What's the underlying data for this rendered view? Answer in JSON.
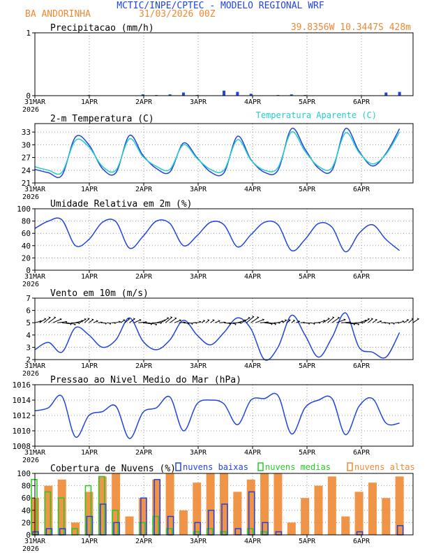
{
  "header": {
    "title": "MCTIC/INPE/CPTEC - MODELO REGIONAL WRF",
    "location": "BA ANDORINHA",
    "date": "31/03/2026 00Z",
    "coords": "39.8356W 10.3447S 428m"
  },
  "colors": {
    "title": "#2244dd",
    "orange": "#ee8833",
    "blue": "#2244dd",
    "cyan": "#22cccc",
    "green": "#22cc22",
    "grid": "#999999"
  },
  "x_ticks": [
    "31MAR",
    "1APR",
    "2APR",
    "3APR",
    "4APR",
    "5APR",
    "6APR"
  ],
  "x_year": "2026",
  "chart_data": [
    {
      "type": "bar",
      "title": "Precipitacao (mm/h)",
      "ylim": [
        0,
        1
      ],
      "yticks": [
        "0",
        "1"
      ],
      "hours": [
        0,
        6,
        12,
        18,
        24,
        30,
        36,
        42,
        48,
        54,
        60,
        66,
        72,
        78,
        84,
        90,
        96,
        102,
        108,
        114,
        120,
        126,
        132,
        138,
        144,
        150,
        156,
        162
      ],
      "values": [
        0,
        0,
        0,
        0,
        0.01,
        0,
        0,
        0,
        0.02,
        0.01,
        0.02,
        0.05,
        0.01,
        0,
        0.08,
        0.06,
        0.03,
        0,
        0.01,
        0.02,
        0.01,
        0,
        0,
        0,
        0,
        0,
        0.05,
        0.06
      ]
    },
    {
      "type": "line",
      "title": "2-m Temperatura (C)",
      "legend": "Temperatura Aparente (C)",
      "ylim": [
        21,
        35
      ],
      "yticks": [
        "21",
        "24",
        "27",
        "30",
        "33"
      ],
      "series": [
        {
          "name": "Temperatura",
          "hours": [
            0,
            6,
            12,
            18,
            24,
            30,
            36,
            42,
            48,
            54,
            60,
            66,
            72,
            78,
            84,
            90,
            96,
            102,
            108,
            114,
            120,
            126,
            132,
            138,
            144,
            150,
            156,
            162
          ],
          "values": [
            24.2,
            23.4,
            22.8,
            31.8,
            30.0,
            24.4,
            23.4,
            32.2,
            27.5,
            24.4,
            23.6,
            30.4,
            27.0,
            23.6,
            23.4,
            32.0,
            26.5,
            23.5,
            24.0,
            33.8,
            29.0,
            24.5,
            24.0,
            33.8,
            28.5,
            25.0,
            28.0,
            33.8
          ]
        },
        {
          "name": "Temperatura Aparente (C)",
          "hours": [
            0,
            6,
            12,
            18,
            24,
            30,
            36,
            42,
            48,
            54,
            60,
            66,
            72,
            78,
            84,
            90,
            96,
            102,
            108,
            114,
            120,
            126,
            132,
            138,
            144,
            150,
            156,
            162
          ],
          "values": [
            24.8,
            24.0,
            23.5,
            31.0,
            29.5,
            24.9,
            24.0,
            31.4,
            27.2,
            24.9,
            24.2,
            30.0,
            26.8,
            24.2,
            24.0,
            31.2,
            26.4,
            24.0,
            24.6,
            33.0,
            28.5,
            24.9,
            24.6,
            32.8,
            28.2,
            25.5,
            27.8,
            33.0
          ]
        }
      ]
    },
    {
      "type": "line",
      "title": "Umidade Relativa em 2m (%)",
      "ylim": [
        0,
        100
      ],
      "yticks": [
        "0",
        "20",
        "40",
        "60",
        "80",
        "100"
      ],
      "hours": [
        0,
        6,
        12,
        18,
        24,
        30,
        36,
        42,
        48,
        54,
        60,
        66,
        72,
        78,
        84,
        90,
        96,
        102,
        108,
        114,
        120,
        126,
        132,
        138,
        144,
        150,
        156,
        162
      ],
      "values": [
        68,
        80,
        82,
        40,
        50,
        78,
        79,
        36,
        55,
        80,
        76,
        40,
        56,
        78,
        74,
        38,
        58,
        78,
        74,
        32,
        50,
        76,
        70,
        30,
        60,
        74,
        50,
        32
      ]
    },
    {
      "type": "line",
      "title": "Vento em 10m (m/s)",
      "ylim": [
        2,
        7
      ],
      "yticks": [
        "2",
        "3",
        "4",
        "5",
        "6",
        "7"
      ],
      "hours": [
        0,
        6,
        12,
        18,
        24,
        30,
        36,
        42,
        48,
        54,
        60,
        66,
        72,
        78,
        84,
        90,
        96,
        102,
        108,
        114,
        120,
        126,
        132,
        138,
        144,
        150,
        156,
        162
      ],
      "values": [
        2.8,
        3.4,
        2.6,
        4.6,
        4.0,
        3.0,
        3.6,
        5.4,
        3.5,
        2.8,
        3.6,
        5.2,
        4.0,
        3.2,
        4.2,
        5.4,
        4.5,
        2.0,
        3.0,
        5.6,
        4.0,
        2.2,
        3.8,
        5.8,
        3.0,
        2.6,
        2.2,
        4.2
      ],
      "vectors": "wind barbs along y=5 (directions from northeast/east)"
    },
    {
      "type": "line",
      "title": "Pressao ao Nivel Medio do Mar (hPa)",
      "ylim": [
        1008,
        1016
      ],
      "yticks": [
        "1008",
        "1010",
        "1012",
        "1014",
        "1016"
      ],
      "hours": [
        0,
        6,
        12,
        18,
        24,
        30,
        36,
        42,
        48,
        54,
        60,
        66,
        72,
        78,
        84,
        90,
        96,
        102,
        108,
        114,
        120,
        126,
        132,
        138,
        144,
        150,
        156,
        162
      ],
      "values": [
        1012.6,
        1013.0,
        1014.5,
        1009.2,
        1012.0,
        1012.5,
        1013.2,
        1009.0,
        1012.4,
        1013.0,
        1014.4,
        1010.0,
        1013.5,
        1014.0,
        1013.5,
        1010.8,
        1014.0,
        1014.2,
        1014.6,
        1009.6,
        1013.0,
        1014.0,
        1014.2,
        1009.5,
        1013.2,
        1014.2,
        1011.0,
        1011.0
      ]
    },
    {
      "type": "bar",
      "title": "Cobertura de Nuvens (%)",
      "ylim": [
        0,
        100
      ],
      "yticks": [
        "0",
        "20",
        "40",
        "60",
        "80",
        "100"
      ],
      "legend": [
        "nuvens baixas",
        "nuvens medias",
        "nuvens altas"
      ],
      "hours": [
        0,
        6,
        12,
        18,
        24,
        30,
        36,
        42,
        48,
        54,
        60,
        66,
        72,
        78,
        84,
        90,
        96,
        102,
        108,
        114,
        120,
        126,
        132,
        138,
        144,
        150,
        156,
        162
      ],
      "series": [
        {
          "name": "nuvens baixas",
          "values": [
            5,
            10,
            10,
            0,
            30,
            50,
            20,
            0,
            60,
            90,
            30,
            0,
            20,
            40,
            50,
            10,
            70,
            20,
            5,
            0,
            0,
            0,
            0,
            0,
            5,
            0,
            0,
            15
          ]
        },
        {
          "name": "nuvens medias",
          "values": [
            90,
            70,
            60,
            10,
            80,
            95,
            40,
            0,
            20,
            30,
            10,
            0,
            5,
            10,
            5,
            0,
            10,
            5,
            0,
            0,
            0,
            0,
            0,
            0,
            0,
            0,
            0,
            0
          ]
        },
        {
          "name": "nuvens altas",
          "values": [
            60,
            80,
            90,
            20,
            70,
            95,
            100,
            30,
            60,
            90,
            100,
            40,
            85,
            100,
            100,
            70,
            90,
            100,
            100,
            20,
            60,
            80,
            95,
            30,
            70,
            85,
            60,
            95
          ]
        }
      ]
    }
  ]
}
